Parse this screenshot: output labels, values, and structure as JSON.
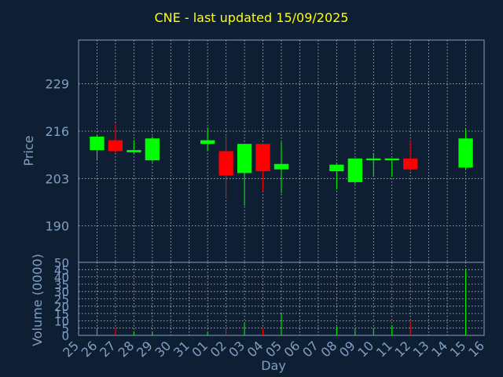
{
  "title": "CNE - last updated 15/09/2025",
  "chart_data": [
    {
      "type": "candlestick",
      "ylabel": "Price",
      "ylim": [
        180,
        241
      ],
      "yticks": [
        190,
        203,
        216,
        229
      ],
      "grid": true,
      "up_color": "#00ff00",
      "down_color": "#ff0000",
      "x_ticks": [
        "25",
        "26",
        "27",
        "28",
        "29",
        "30",
        "31",
        "01",
        "02",
        "03",
        "04",
        "05",
        "06",
        "07",
        "08",
        "09",
        "10",
        "11",
        "12",
        "13",
        "14",
        "15",
        "16"
      ],
      "candles": [
        {
          "day": "26",
          "open": 210.8,
          "close": 214.5,
          "high": 215.0,
          "low": 208.0
        },
        {
          "day": "27",
          "open": 213.5,
          "close": 210.5,
          "high": 218.0,
          "low": 210.0
        },
        {
          "day": "28",
          "open": 210.2,
          "close": 210.8,
          "high": 213.5,
          "low": 210.0
        },
        {
          "day": "29",
          "open": 208.0,
          "close": 214.0,
          "high": 214.5,
          "low": 207.5
        },
        {
          "day": "01",
          "open": 212.5,
          "close": 213.5,
          "high": 217.0,
          "low": 210.5
        },
        {
          "day": "02",
          "open": 210.5,
          "close": 203.8,
          "high": 215.0,
          "low": 197.5
        },
        {
          "day": "03",
          "open": 204.5,
          "close": 212.5,
          "high": 212.5,
          "low": 195.5
        },
        {
          "day": "04",
          "open": 212.5,
          "close": 205.0,
          "high": 212.5,
          "low": 199.5
        },
        {
          "day": "05",
          "open": 205.5,
          "close": 207.0,
          "high": 213.0,
          "low": 199.0
        },
        {
          "day": "08",
          "open": 205.0,
          "close": 206.8,
          "high": 207.0,
          "low": 200.0
        },
        {
          "day": "09",
          "open": 202.0,
          "close": 208.5,
          "high": 208.5,
          "low": 201.5
        },
        {
          "day": "10",
          "open": 208.0,
          "close": 208.5,
          "high": 210.0,
          "low": 203.5
        },
        {
          "day": "11",
          "open": 208.0,
          "close": 208.5,
          "high": 208.5,
          "low": 203.5
        },
        {
          "day": "12",
          "open": 208.5,
          "close": 205.5,
          "high": 213.5,
          "low": 205.0
        },
        {
          "day": "15",
          "open": 206.0,
          "close": 214.0,
          "high": 216.5,
          "low": 205.5
        }
      ]
    },
    {
      "type": "bar",
      "ylabel": "Volume (0000)",
      "xlabel": "Day",
      "ylim": [
        0,
        50
      ],
      "yticks": [
        0,
        5,
        10,
        15,
        20,
        25,
        30,
        35,
        40,
        45,
        50
      ],
      "ytick_labels": [
        "0",
        "5",
        "10",
        "15",
        "20",
        "25",
        "30",
        "35",
        "40",
        "45",
        "50"
      ],
      "grid": true,
      "volumes": [
        {
          "day": "26",
          "value": 5,
          "direction": "up"
        },
        {
          "day": "27",
          "value": 5,
          "direction": "down"
        },
        {
          "day": "28",
          "value": 2,
          "direction": "up"
        },
        {
          "day": "29",
          "value": 2,
          "direction": "up"
        },
        {
          "day": "01",
          "value": 2,
          "direction": "up"
        },
        {
          "day": "02",
          "value": 5,
          "direction": "down"
        },
        {
          "day": "03",
          "value": 9,
          "direction": "up"
        },
        {
          "day": "04",
          "value": 5,
          "direction": "down"
        },
        {
          "day": "05",
          "value": 15,
          "direction": "up"
        },
        {
          "day": "08",
          "value": 6,
          "direction": "up"
        },
        {
          "day": "09",
          "value": 4,
          "direction": "up"
        },
        {
          "day": "10",
          "value": 5,
          "direction": "up"
        },
        {
          "day": "11",
          "value": 7,
          "direction": "up"
        },
        {
          "day": "12",
          "value": 10,
          "direction": "down"
        },
        {
          "day": "15",
          "value": 45,
          "direction": "up"
        }
      ]
    }
  ]
}
